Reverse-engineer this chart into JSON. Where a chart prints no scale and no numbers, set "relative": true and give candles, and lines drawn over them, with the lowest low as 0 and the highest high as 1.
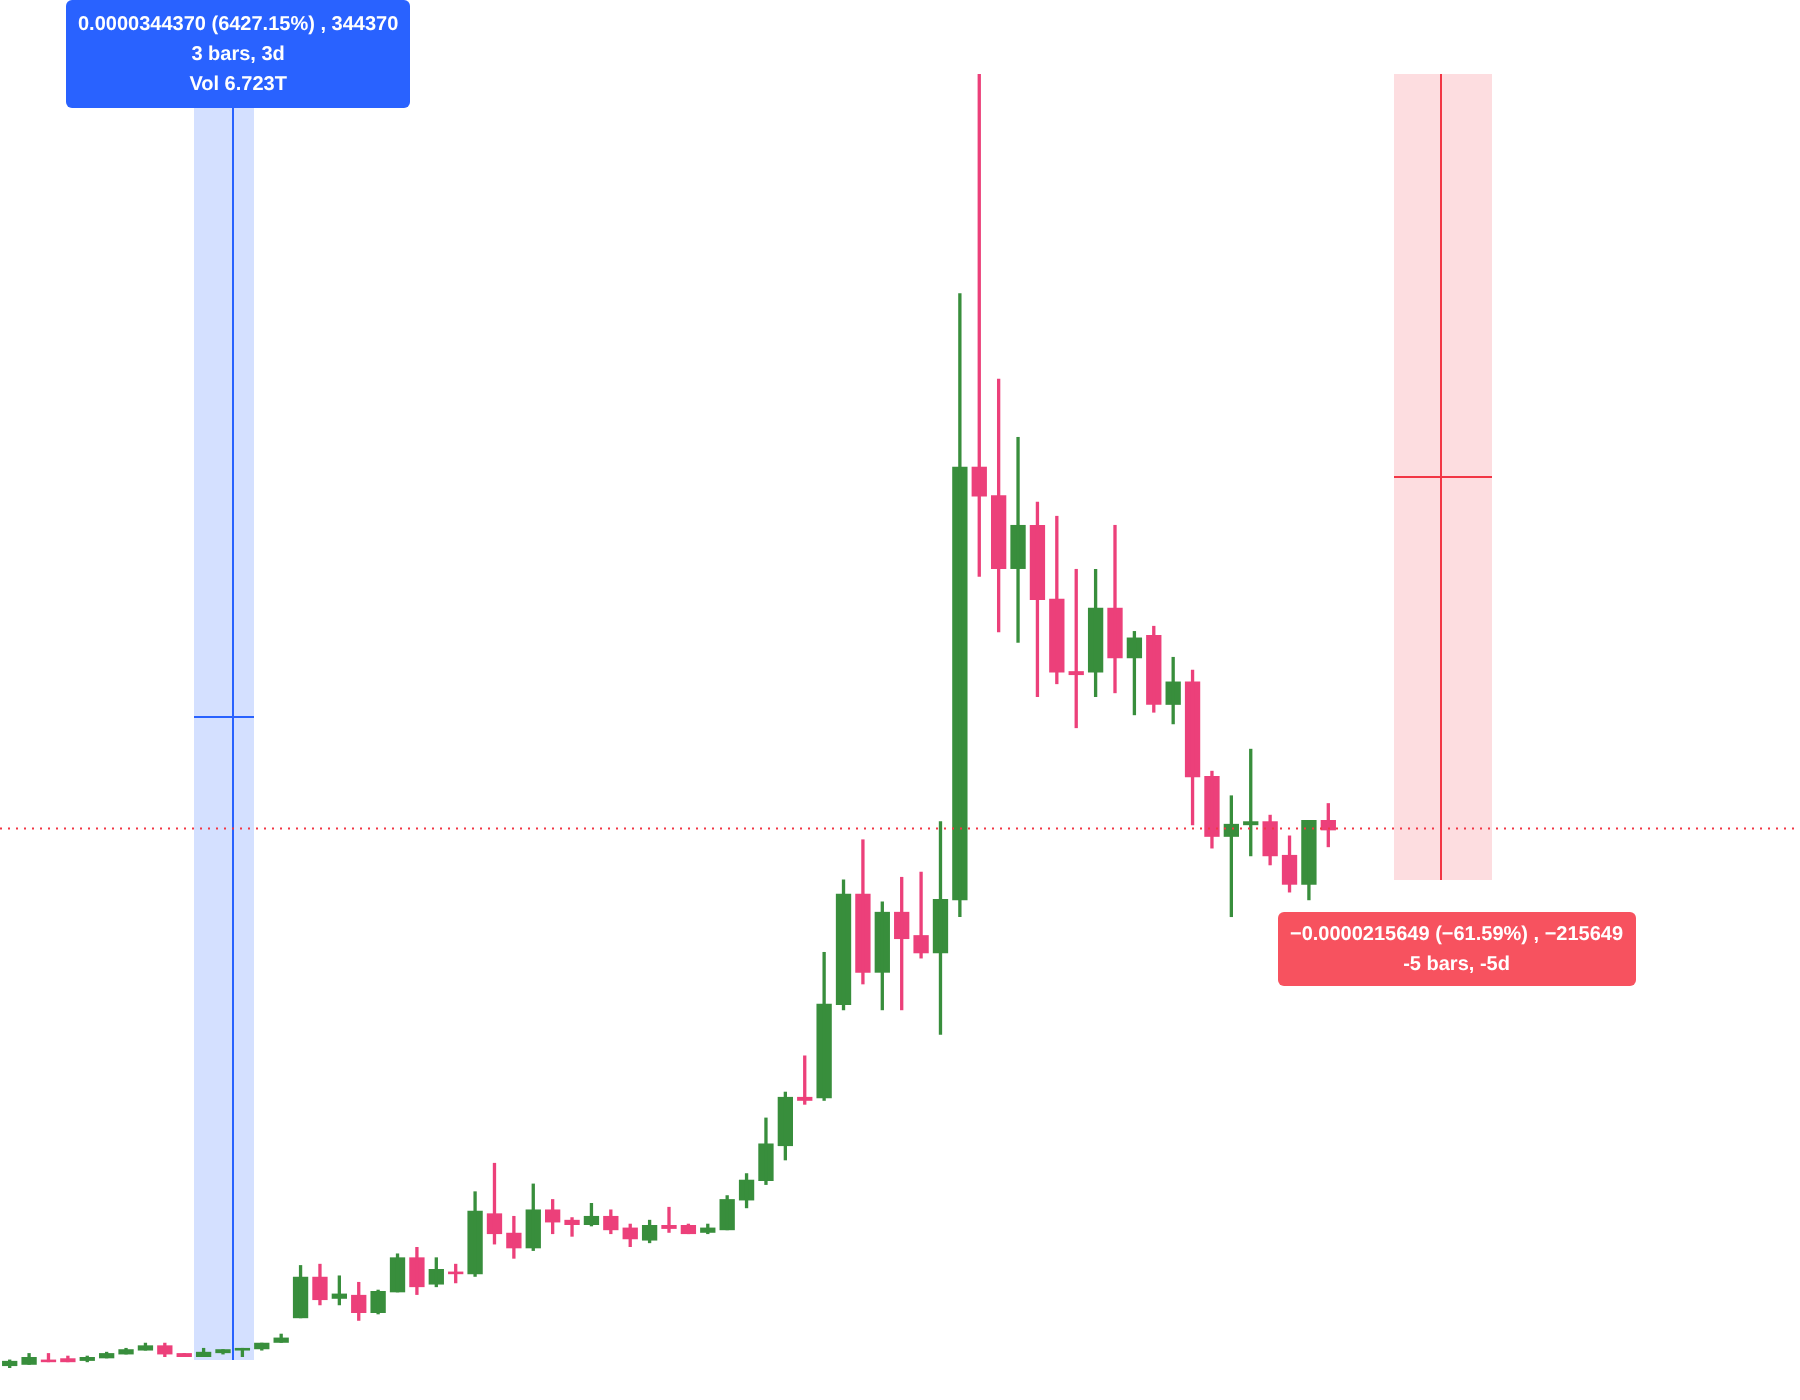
{
  "chart_data": {
    "type": "candlestick",
    "relative": true,
    "tick_labels": false,
    "categories": [
      null,
      null,
      null,
      null,
      null,
      null,
      null,
      null,
      null,
      null,
      null,
      null,
      null,
      null,
      null,
      null,
      null,
      null,
      null,
      null,
      null,
      null,
      null,
      null,
      null,
      null,
      null,
      null,
      null,
      null,
      null,
      null,
      null,
      null,
      null,
      null,
      null,
      null,
      null,
      null,
      null,
      null,
      null,
      null,
      null,
      null,
      null,
      null,
      null,
      null,
      null,
      null,
      null,
      null,
      null,
      null,
      null,
      null,
      null,
      null,
      null,
      null,
      null,
      null,
      null,
      null,
      null,
      null,
      null
    ],
    "ohlc": [
      [
        0.002,
        0.006,
        0,
        0.005
      ],
      [
        0.003,
        0.011,
        0.003,
        0.008
      ],
      [
        0.006,
        0.011,
        0.005,
        0.005
      ],
      [
        0.007,
        0.009,
        0.005,
        0.005
      ],
      [
        0.006,
        0.009,
        0.005,
        0.008
      ],
      [
        0.008,
        0.012,
        0.008,
        0.011
      ],
      [
        0.011,
        0.015,
        0.011,
        0.014
      ],
      [
        0.014,
        0.019,
        0.014,
        0.017
      ],
      [
        0.017,
        0.019,
        0.009,
        0.011
      ],
      [
        0.011,
        0.011,
        0.009,
        0.009
      ],
      [
        0.009,
        0.015,
        0.009,
        0.012
      ],
      [
        0.012,
        0.014,
        0.011,
        0.014
      ],
      [
        0.014,
        0.015,
        0.009,
        0.015
      ],
      [
        0.015,
        0.019,
        0.014,
        0.019
      ],
      [
        0.02,
        0.026,
        0.02,
        0.023
      ],
      [
        0.039,
        0.079,
        0.039,
        0.07
      ],
      [
        0.07,
        0.08,
        0.049,
        0.053
      ],
      [
        0.054,
        0.071,
        0.049,
        0.057
      ],
      [
        0.056,
        0.066,
        0.037,
        0.043
      ],
      [
        0.043,
        0.06,
        0.042,
        0.059
      ],
      [
        0.059,
        0.088,
        0.059,
        0.085
      ],
      [
        0.085,
        0.093,
        0.057,
        0.063
      ],
      [
        0.065,
        0.085,
        0.063,
        0.076
      ],
      [
        0.074,
        0.08,
        0.066,
        0.073
      ],
      [
        0.073,
        0.136,
        0.071,
        0.121
      ],
      [
        0.119,
        0.158,
        0.096,
        0.104
      ],
      [
        0.104,
        0.117,
        0.085,
        0.093
      ],
      [
        0.093,
        0.142,
        0.091,
        0.122
      ],
      [
        0.122,
        0.13,
        0.104,
        0.113
      ],
      [
        0.114,
        0.116,
        0.102,
        0.111
      ],
      [
        0.111,
        0.127,
        0.11,
        0.117
      ],
      [
        0.117,
        0.122,
        0.104,
        0.107
      ],
      [
        0.108,
        0.111,
        0.094,
        0.1
      ],
      [
        0.099,
        0.114,
        0.097,
        0.11
      ],
      [
        0.11,
        0.124,
        0.105,
        0.108
      ],
      [
        0.11,
        0.111,
        0.104,
        0.104
      ],
      [
        0.105,
        0.111,
        0.104,
        0.108
      ],
      [
        0.107,
        0.133,
        0.107,
        0.13
      ],
      [
        0.13,
        0.15,
        0.124,
        0.145
      ],
      [
        0.145,
        0.193,
        0.142,
        0.173
      ],
      [
        0.172,
        0.213,
        0.161,
        0.209
      ],
      [
        0.209,
        0.241,
        0.204,
        0.207
      ],
      [
        0.209,
        0.321,
        0.207,
        0.281
      ],
      [
        0.281,
        0.377,
        0.277,
        0.366
      ],
      [
        0.366,
        0.408,
        0.297,
        0.306
      ],
      [
        0.306,
        0.36,
        0.277,
        0.352
      ],
      [
        0.352,
        0.379,
        0.277,
        0.332
      ],
      [
        0.334,
        0.383,
        0.317,
        0.321
      ],
      [
        0.321,
        0.422,
        0.258,
        0.362
      ],
      [
        0.362,
        0.83,
        0.349,
        0.696
      ],
      [
        0.696,
        1,
        0.612,
        0.674
      ],
      [
        0.674,
        0.764,
        0.569,
        0.618
      ],
      [
        0.618,
        0.719,
        0.561,
        0.651
      ],
      [
        0.651,
        0.669,
        0.519,
        0.594
      ],
      [
        0.594,
        0.658,
        0.529,
        0.538
      ],
      [
        0.538,
        0.617,
        0.495,
        0.536
      ],
      [
        0.538,
        0.617,
        0.519,
        0.587
      ],
      [
        0.587,
        0.651,
        0.522,
        0.549
      ],
      [
        0.549,
        0.569,
        0.505,
        0.564
      ],
      [
        0.566,
        0.573,
        0.507,
        0.513
      ],
      [
        0.513,
        0.549,
        0.498,
        0.53
      ],
      [
        0.53,
        0.539,
        0.42,
        0.457
      ],
      [
        0.457,
        0.461,
        0.402,
        0.411
      ],
      [
        0.411,
        0.442,
        0.349,
        0.42
      ],
      [
        0.42,
        0.478,
        0.396,
        0.422
      ],
      [
        0.422,
        0.427,
        0.389,
        0.396
      ],
      [
        0.396,
        0.411,
        0.368,
        0.374
      ],
      [
        0.374,
        0.423,
        0.362,
        0.423
      ],
      [
        0.423,
        0.436,
        0.403,
        0.416
      ]
    ],
    "colors": [
      "#388e3c",
      "#388e3c",
      "#ec407a",
      "#ec407a",
      "#388e3c",
      "#388e3c",
      "#388e3c",
      "#388e3c",
      "#ec407a",
      "#ec407a",
      "#388e3c",
      "#388e3c",
      "#388e3c",
      "#388e3c",
      "#388e3c",
      "#388e3c",
      "#ec407a",
      "#388e3c",
      "#ec407a",
      "#388e3c",
      "#388e3c",
      "#ec407a",
      "#388e3c",
      "#ec407a",
      "#388e3c",
      "#ec407a",
      "#ec407a",
      "#388e3c",
      "#ec407a",
      "#ec407a",
      "#388e3c",
      "#ec407a",
      "#ec407a",
      "#388e3c",
      "#ec407a",
      "#ec407a",
      "#388e3c",
      "#388e3c",
      "#388e3c",
      "#388e3c",
      "#388e3c",
      "#ec407a",
      "#388e3c",
      "#388e3c",
      "#ec407a",
      "#388e3c",
      "#ec407a",
      "#ec407a",
      "#388e3c",
      "#388e3c",
      "#ec407a",
      "#ec407a",
      "#388e3c",
      "#ec407a",
      "#ec407a",
      "#ec407a",
      "#388e3c",
      "#ec407a",
      "#388e3c",
      "#ec407a",
      "#388e3c",
      "#ec407a",
      "#ec407a",
      "#388e3c",
      "#388e3c",
      "#ec407a",
      "#ec407a",
      "#388e3c",
      "#ec407a"
    ],
    "ref_lines": [
      {
        "axis": "y",
        "value": 0.417,
        "color": "#f23645",
        "line_style": "dotted"
      }
    ],
    "annotations": [
      "0.0000344370 (6427.15%) , 344370",
      "3 bars, 3d",
      "Vol 6.723T",
      "−0.0000215649 (−61.59%) , −215649",
      "-5 bars, -5d"
    ]
  }
}
